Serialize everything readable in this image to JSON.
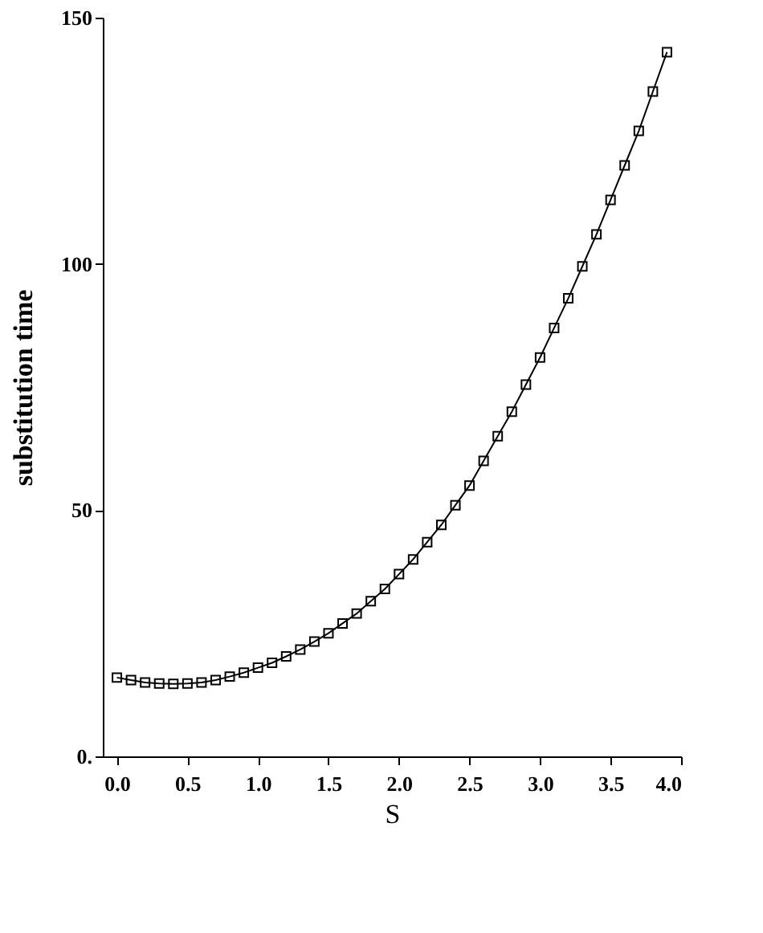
{
  "chart_data": {
    "type": "line",
    "xlabel": "S",
    "ylabel": "substitution time",
    "x": [
      0.0,
      0.1,
      0.2,
      0.3,
      0.4,
      0.5,
      0.6,
      0.7,
      0.8,
      0.9,
      1.0,
      1.1,
      1.2,
      1.3,
      1.4,
      1.5,
      1.6,
      1.7,
      1.8,
      1.9,
      2.0,
      2.1,
      2.2,
      2.3,
      2.4,
      2.5,
      2.6,
      2.7,
      2.8,
      2.9,
      3.0,
      3.1,
      3.2,
      3.3,
      3.4,
      3.5,
      3.6,
      3.7,
      3.8,
      3.9
    ],
    "series": [
      {
        "color": "#000000",
        "values": [
          16,
          15.5,
          15,
          14.8,
          14.7,
          14.8,
          15,
          15.5,
          16.2,
          17,
          18,
          19,
          20.3,
          21.7,
          23.3,
          25,
          27,
          29,
          31.5,
          34,
          37,
          40,
          43.5,
          47,
          51,
          55,
          60,
          65,
          70,
          75.5,
          81,
          87,
          93,
          99.5,
          106,
          113,
          120,
          127,
          135,
          143
        ]
      }
    ],
    "xlim": [
      -0.1,
      4.0
    ],
    "xticks": [
      {
        "value": 0,
        "label": "0.0"
      },
      {
        "value": 0.5,
        "label": "0.5"
      },
      {
        "value": 1,
        "label": "1.0"
      },
      {
        "value": 1.5,
        "label": "1.5"
      },
      {
        "value": 2,
        "label": "2.0"
      },
      {
        "value": 2.5,
        "label": "2.5"
      },
      {
        "value": 3,
        "label": "3.0"
      },
      {
        "value": 3.5,
        "label": "3.5"
      },
      {
        "value": 4,
        "label": "4.0"
      }
    ],
    "ylim": [
      0,
      150
    ],
    "yticks": [
      {
        "value": 0,
        "label": "0."
      },
      50,
      100,
      150
    ],
    "grid": false,
    "marker": "square",
    "line_style": "solid"
  }
}
